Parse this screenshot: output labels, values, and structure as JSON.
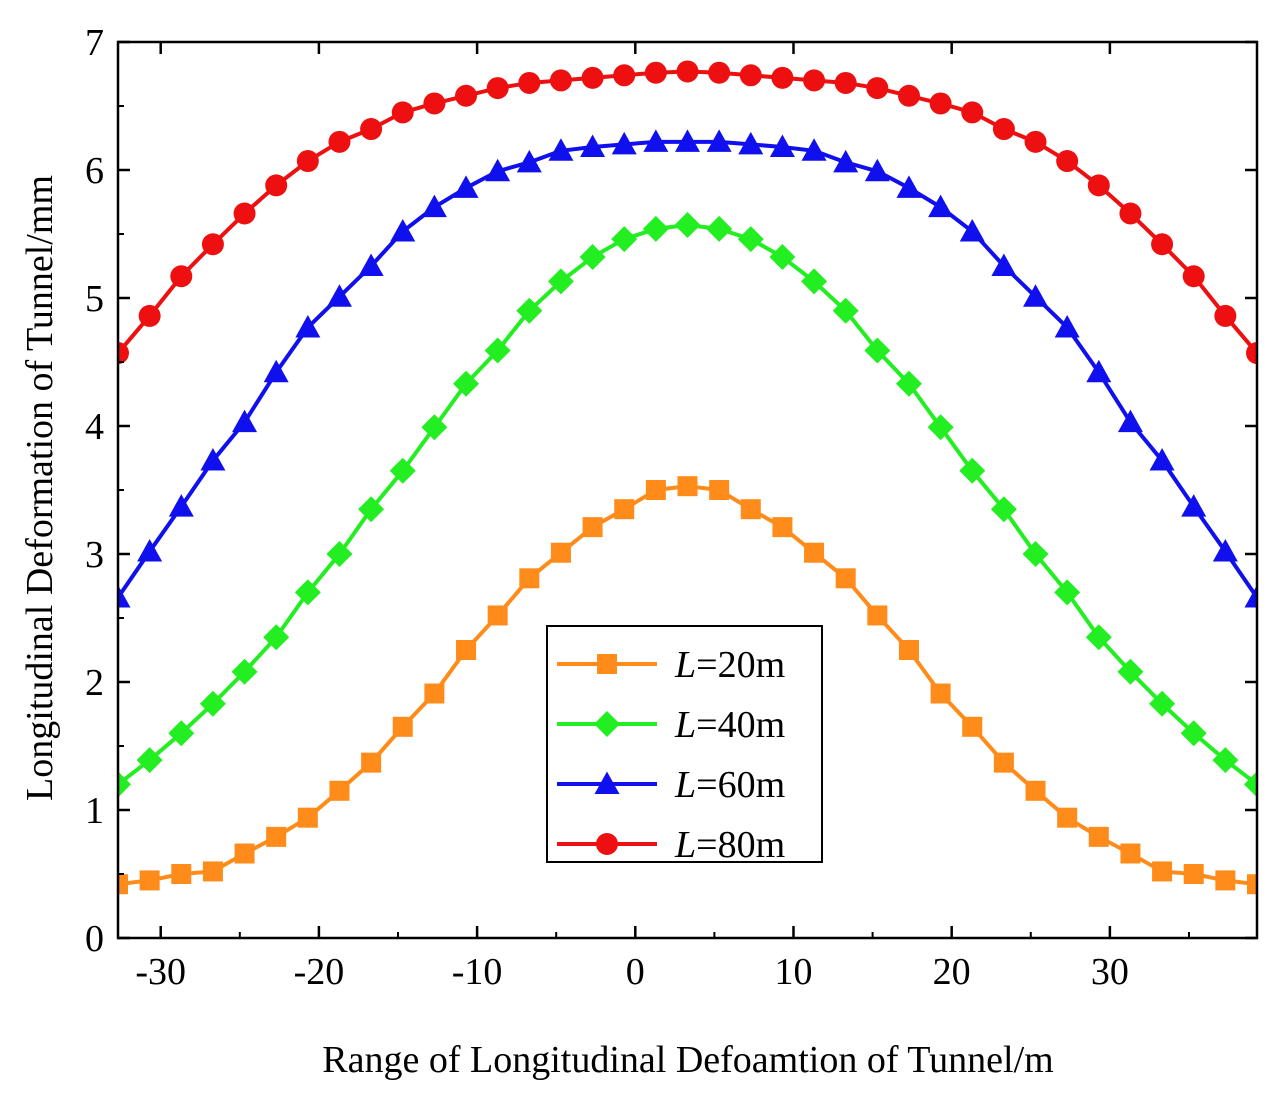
{
  "chart_data": {
    "type": "line",
    "title": "",
    "xlabel": "Range of Longitudinal Defoamtion of Tunnel/m",
    "ylabel": "Longitudinal Deformation of Tunnel/mm",
    "xlim": [
      -32.7,
      39.3
    ],
    "ylim": [
      0,
      7
    ],
    "xticks": [
      -30,
      -20,
      -10,
      0,
      10,
      20,
      30
    ],
    "xtick_labels": [
      "-30",
      "-20",
      "-10",
      "0",
      "10",
      "20",
      "30"
    ],
    "yticks": [
      0,
      1,
      2,
      3,
      4,
      5,
      6,
      7
    ],
    "ytick_labels": [
      "0",
      "1",
      "2",
      "3",
      "4",
      "5",
      "6",
      "7"
    ],
    "grid": false,
    "legend_position": "bottom-center",
    "x": [
      -32.7,
      -30.7,
      -28.7,
      -26.7,
      -24.7,
      -22.7,
      -20.7,
      -18.7,
      -16.7,
      -14.7,
      -12.7,
      -10.7,
      -8.7,
      -6.7,
      -4.7,
      -2.7,
      -0.7,
      1.3,
      3.3,
      5.3,
      7.3,
      9.3,
      11.3,
      13.3,
      15.3,
      17.3,
      19.3,
      21.3,
      23.3,
      25.3,
      27.3,
      29.3,
      31.3,
      33.3,
      35.3,
      37.3,
      39.3
    ],
    "series": [
      {
        "name": "L=20m",
        "label_italic": "L",
        "label_rest": "=20m",
        "color": "#FF8C1A",
        "marker": "square",
        "values": [
          0.42,
          0.45,
          0.5,
          0.52,
          0.66,
          0.79,
          0.94,
          1.15,
          1.37,
          1.65,
          1.91,
          2.25,
          2.52,
          2.81,
          3.01,
          3.21,
          3.35,
          3.5,
          3.53,
          3.5,
          3.35,
          3.21,
          3.01,
          2.81,
          2.52,
          2.25,
          1.91,
          1.65,
          1.37,
          1.15,
          0.94,
          0.79,
          0.66,
          0.52,
          0.5,
          0.45,
          0.42
        ]
      },
      {
        "name": "L=40m",
        "label_italic": "L",
        "label_rest": "=40m",
        "color": "#22EE22",
        "marker": "diamond",
        "values": [
          1.2,
          1.39,
          1.6,
          1.83,
          2.08,
          2.35,
          2.7,
          3.0,
          3.35,
          3.65,
          3.99,
          4.33,
          4.59,
          4.9,
          5.13,
          5.32,
          5.46,
          5.54,
          5.57,
          5.54,
          5.46,
          5.32,
          5.13,
          4.9,
          4.59,
          4.33,
          3.99,
          3.65,
          3.35,
          3.0,
          2.7,
          2.35,
          2.08,
          1.83,
          1.6,
          1.39,
          1.2
        ]
      },
      {
        "name": "L=60m",
        "label_italic": "L",
        "label_rest": "=60m",
        "color": "#1010EE",
        "marker": "triangle",
        "values": [
          2.66,
          3.02,
          3.37,
          3.73,
          4.03,
          4.42,
          4.77,
          5.01,
          5.25,
          5.52,
          5.71,
          5.86,
          5.99,
          6.06,
          6.15,
          6.18,
          6.2,
          6.22,
          6.22,
          6.22,
          6.2,
          6.18,
          6.15,
          6.06,
          5.99,
          5.86,
          5.71,
          5.52,
          5.25,
          5.01,
          4.77,
          4.42,
          4.03,
          3.73,
          3.37,
          3.02,
          2.66
        ]
      },
      {
        "name": "L=80m",
        "label_italic": "L",
        "label_rest": "=80m",
        "color": "#EE1010",
        "marker": "circle",
        "values": [
          4.57,
          4.86,
          5.17,
          5.42,
          5.66,
          5.88,
          6.07,
          6.22,
          6.32,
          6.45,
          6.52,
          6.58,
          6.64,
          6.68,
          6.7,
          6.72,
          6.74,
          6.76,
          6.77,
          6.76,
          6.74,
          6.72,
          6.7,
          6.68,
          6.64,
          6.58,
          6.52,
          6.45,
          6.32,
          6.22,
          6.07,
          5.88,
          5.66,
          5.42,
          5.17,
          4.86,
          4.57
        ]
      }
    ]
  }
}
